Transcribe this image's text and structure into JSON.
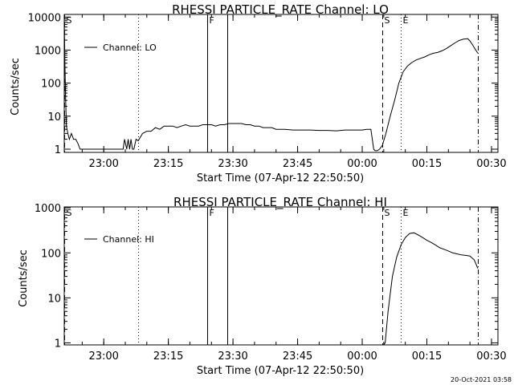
{
  "footer_timestamp": "20-Oct-2021 03:58",
  "colors": {
    "background": "#ffffff",
    "foreground": "#000000"
  },
  "chart_data": [
    {
      "type": "line",
      "title": "RHESSI PARTICLE_RATE Channel: LO",
      "xlabel": "Start Time (07-Apr-12 22:50:50)",
      "ylabel": "Counts/sec",
      "yscale": "log",
      "xlim": [
        "22:50:50",
        "00:31:30"
      ],
      "ylim": [
        0.8,
        12000
      ],
      "xticks": [
        "23:00",
        "23:15",
        "23:30",
        "23:45",
        "00:00",
        "00:15",
        "00:30"
      ],
      "yticks": [
        "1",
        "10",
        "100",
        "1000",
        "10000"
      ],
      "legend": {
        "label": "Channel: LO",
        "position": "top-left"
      },
      "markers": [
        {
          "label": "S",
          "time": "22:50:50",
          "style": "dashed"
        },
        {
          "label": "",
          "time": "23:08:00",
          "style": "dotted"
        },
        {
          "label": "F",
          "time": "23:24:00",
          "style": "solid"
        },
        {
          "label": "",
          "time": "23:28:40",
          "style": "solid"
        },
        {
          "label": "S",
          "time": "00:04:40",
          "style": "dashed"
        },
        {
          "label": "E",
          "time": "00:09:00",
          "style": "dotted"
        },
        {
          "label": "",
          "time": "00:26:50",
          "style": "dashdot"
        }
      ],
      "series": [
        {
          "name": "Channel: LO",
          "points": [
            [
              "22:50:50",
              8000
            ],
            [
              "22:51:00",
              300
            ],
            [
              "22:51:10",
              30
            ],
            [
              "22:51:20",
              5
            ],
            [
              "22:51:40",
              3
            ],
            [
              "22:52:00",
              2
            ],
            [
              "22:52:30",
              3
            ],
            [
              "22:53:00",
              2
            ],
            [
              "22:53:30",
              2
            ],
            [
              "22:54:00",
              1.5
            ],
            [
              "22:54:30",
              1
            ],
            [
              "23:04:30",
              1
            ],
            [
              "23:04:50",
              2
            ],
            [
              "23:05:20",
              1
            ],
            [
              "23:05:40",
              2
            ],
            [
              "23:06:00",
              1
            ],
            [
              "23:06:20",
              2
            ],
            [
              "23:06:40",
              1
            ],
            [
              "23:07:00",
              1
            ],
            [
              "23:07:30",
              2
            ],
            [
              "23:08:00",
              1.8
            ],
            [
              "23:09:00",
              3
            ],
            [
              "23:10:00",
              3.5
            ],
            [
              "23:11:00",
              3.5
            ],
            [
              "23:12:00",
              4.5
            ],
            [
              "23:13:00",
              4
            ],
            [
              "23:14:00",
              5
            ],
            [
              "23:15:00",
              5
            ],
            [
              "23:16:00",
              5
            ],
            [
              "23:17:00",
              4.5
            ],
            [
              "23:18:00",
              5
            ],
            [
              "23:19:00",
              5.5
            ],
            [
              "23:20:00",
              5
            ],
            [
              "23:21:00",
              5
            ],
            [
              "23:22:00",
              5
            ],
            [
              "23:23:00",
              5.5
            ],
            [
              "23:24:00",
              5.5
            ],
            [
              "23:25:00",
              5.5
            ],
            [
              "23:26:00",
              5
            ],
            [
              "23:27:00",
              5.5
            ],
            [
              "23:28:00",
              5.5
            ],
            [
              "23:29:00",
              6
            ],
            [
              "23:30:00",
              6
            ],
            [
              "23:31:00",
              6
            ],
            [
              "23:32:00",
              6
            ],
            [
              "23:33:00",
              5.5
            ],
            [
              "23:34:00",
              5.5
            ],
            [
              "23:35:00",
              5
            ],
            [
              "23:36:00",
              5
            ],
            [
              "23:37:00",
              4.5
            ],
            [
              "23:38:00",
              4.5
            ],
            [
              "23:39:00",
              4.5
            ],
            [
              "23:40:00",
              4
            ],
            [
              "23:41:00",
              4
            ],
            [
              "23:42:00",
              4
            ],
            [
              "23:44:00",
              3.8
            ],
            [
              "23:46:00",
              3.8
            ],
            [
              "23:48:00",
              3.8
            ],
            [
              "23:50:00",
              3.7
            ],
            [
              "23:52:00",
              3.7
            ],
            [
              "23:54:00",
              3.6
            ],
            [
              "23:56:00",
              3.8
            ],
            [
              "23:58:00",
              3.8
            ],
            [
              "00:00:00",
              3.8
            ],
            [
              "00:01:00",
              4
            ],
            [
              "00:02:00",
              4
            ],
            [
              "00:02:40",
              1
            ],
            [
              "00:03:00",
              0.9
            ],
            [
              "00:03:30",
              0.9
            ],
            [
              "00:04:00",
              1
            ],
            [
              "00:04:40",
              1.3
            ],
            [
              "00:05:30",
              3
            ],
            [
              "00:06:30",
              10
            ],
            [
              "00:07:30",
              30
            ],
            [
              "00:08:30",
              100
            ],
            [
              "00:09:30",
              220
            ],
            [
              "00:10:30",
              330
            ],
            [
              "00:11:30",
              420
            ],
            [
              "00:12:30",
              500
            ],
            [
              "00:13:30",
              560
            ],
            [
              "00:14:30",
              620
            ],
            [
              "00:15:30",
              720
            ],
            [
              "00:16:30",
              800
            ],
            [
              "00:17:30",
              850
            ],
            [
              "00:18:30",
              950
            ],
            [
              "00:19:30",
              1100
            ],
            [
              "00:20:30",
              1350
            ],
            [
              "00:21:30",
              1650
            ],
            [
              "00:22:30",
              1950
            ],
            [
              "00:23:30",
              2150
            ],
            [
              "00:24:30",
              2200
            ],
            [
              "00:25:00",
              1900
            ],
            [
              "00:25:40",
              1400
            ],
            [
              "00:26:20",
              1000
            ],
            [
              "00:26:50",
              800
            ]
          ]
        }
      ]
    },
    {
      "type": "line",
      "title": "RHESSI PARTICLE_RATE Channel: HI",
      "xlabel": "Start Time (07-Apr-12 22:50:50)",
      "ylabel": "Counts/sec",
      "yscale": "log",
      "xlim": [
        "22:50:50",
        "00:31:30"
      ],
      "ylim": [
        0.9,
        1050
      ],
      "xticks": [
        "23:00",
        "23:15",
        "23:30",
        "23:45",
        "00:00",
        "00:15",
        "00:30"
      ],
      "yticks": [
        "1",
        "10",
        "100",
        "1000"
      ],
      "legend": {
        "label": "Channel: HI",
        "position": "top-left"
      },
      "markers": [
        {
          "label": "S",
          "time": "22:50:50",
          "style": "dashed"
        },
        {
          "label": "",
          "time": "23:08:00",
          "style": "dotted"
        },
        {
          "label": "F",
          "time": "23:24:00",
          "style": "solid"
        },
        {
          "label": "",
          "time": "23:28:40",
          "style": "solid"
        },
        {
          "label": "S",
          "time": "00:04:40",
          "style": "dashed"
        },
        {
          "label": "E",
          "time": "00:09:00",
          "style": "dotted"
        },
        {
          "label": "",
          "time": "00:26:50",
          "style": "dashdot"
        }
      ],
      "series": [
        {
          "name": "Channel: HI",
          "points": [
            [
              "00:05:00",
              0.9
            ],
            [
              "00:05:20",
              1
            ],
            [
              "00:06:00",
              5
            ],
            [
              "00:07:00",
              30
            ],
            [
              "00:08:00",
              80
            ],
            [
              "00:09:00",
              150
            ],
            [
              "00:10:00",
              220
            ],
            [
              "00:11:00",
              270
            ],
            [
              "00:12:00",
              280
            ],
            [
              "00:13:00",
              250
            ],
            [
              "00:14:00",
              220
            ],
            [
              "00:15:00",
              190
            ],
            [
              "00:16:00",
              170
            ],
            [
              "00:17:00",
              150
            ],
            [
              "00:18:00",
              130
            ],
            [
              "00:19:00",
              120
            ],
            [
              "00:20:00",
              110
            ],
            [
              "00:21:00",
              100
            ],
            [
              "00:22:00",
              95
            ],
            [
              "00:23:00",
              90
            ],
            [
              "00:24:00",
              88
            ],
            [
              "00:25:00",
              85
            ],
            [
              "00:26:00",
              70
            ],
            [
              "00:26:50",
              45
            ]
          ]
        }
      ]
    }
  ]
}
